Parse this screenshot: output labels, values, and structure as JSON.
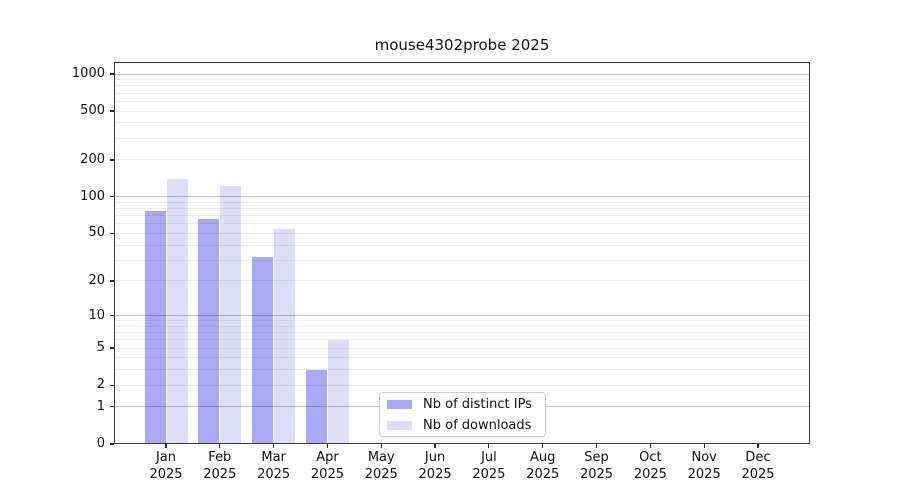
{
  "chart_data": {
    "type": "bar",
    "title": "mouse4302probe 2025",
    "categories": [
      "Jan",
      "Feb",
      "Mar",
      "Apr",
      "May",
      "Jun",
      "Jul",
      "Aug",
      "Sep",
      "Oct",
      "Nov",
      "Dec"
    ],
    "x_year": "2025",
    "series": [
      {
        "name": "Nb of distinct IPs",
        "color": "#a9a9f4",
        "values": [
          77,
          66,
          32,
          3,
          null,
          null,
          null,
          null,
          null,
          null,
          null,
          null
        ]
      },
      {
        "name": "Nb of downloads",
        "color": "#dedefa",
        "values": [
          139,
          122,
          54,
          6,
          null,
          null,
          null,
          null,
          null,
          null,
          null,
          null
        ]
      }
    ],
    "y_scale": "log10(1+x)",
    "yticks": [
      0,
      1,
      2,
      5,
      10,
      20,
      50,
      100,
      200,
      500,
      1000
    ],
    "ylim": [
      0,
      1260
    ],
    "grid": true,
    "legend_position": "lower center-left inside plot",
    "colors": {
      "major_gridline": "#c3c3c3",
      "minor_gridline": "#ececec",
      "spine": "#3a3a3a",
      "text": "#111111"
    }
  }
}
